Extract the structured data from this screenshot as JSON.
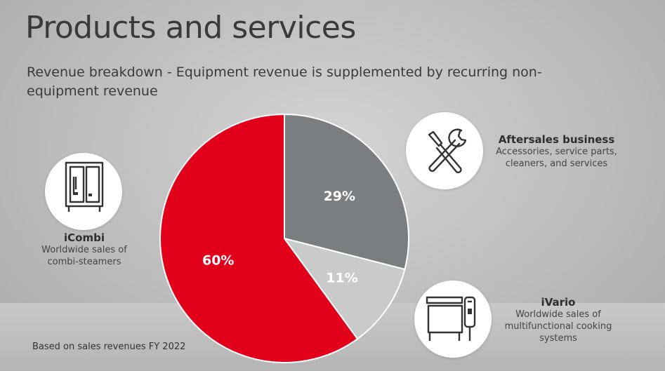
{
  "header": {
    "title": "Products and services",
    "subtitle": "Revenue breakdown - Equipment revenue is supplemented by recurring non-equipment revenue"
  },
  "segments": {
    "icombi": {
      "title": "iCombi",
      "desc_line1": "Worldwide sales of",
      "desc_line2": "combi-steamers",
      "icon": "combi-steamer-icon"
    },
    "aftersales": {
      "title": "Aftersales business",
      "desc_line1": "Accessories, service parts,",
      "desc_line2": "cleaners, and services",
      "icon": "wrench-screwdriver-icon"
    },
    "ivario": {
      "title": "iVario",
      "desc_line1": "Worldwide sales of",
      "desc_line2": "multifunctional cooking",
      "desc_line3": "systems",
      "icon": "cooking-system-icon"
    }
  },
  "footnote": "Based on sales revenues FY 2022",
  "chart_data": {
    "type": "pie",
    "slices": [
      {
        "name": "Aftersales business",
        "value": 29,
        "label": "29%",
        "color": "#7b7e80"
      },
      {
        "name": "iVario",
        "value": 11,
        "label": "11%",
        "color": "#c9cbcb"
      },
      {
        "name": "iCombi",
        "value": 60,
        "label": "60%",
        "color": "#e2001a"
      }
    ]
  }
}
